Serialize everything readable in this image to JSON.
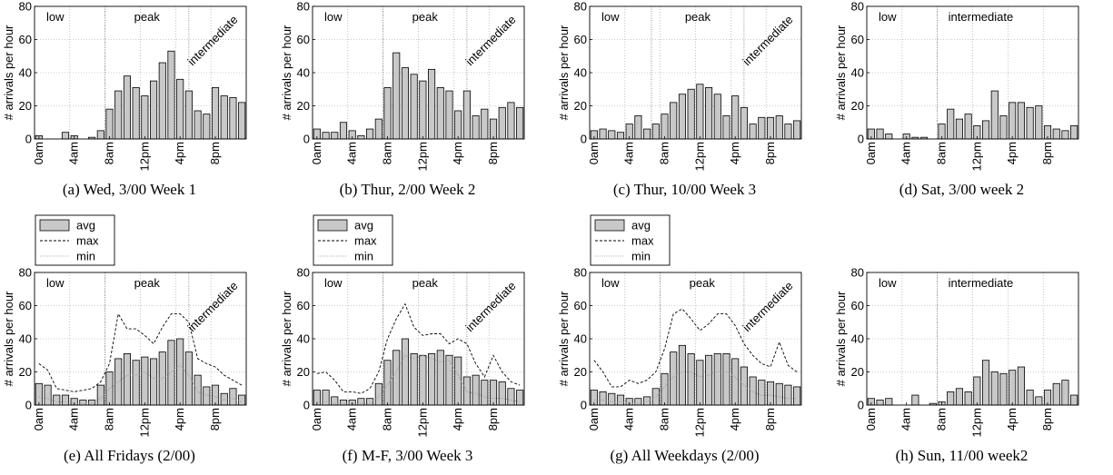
{
  "colors": {
    "bar_fill": "#c8c8c8",
    "bar_stroke": "#000000",
    "grid": "#9a9a9a",
    "max_line": "#000000",
    "min_line": "#8a8a8a",
    "divider": "#777777"
  },
  "chart_data": [
    {
      "type": "bar",
      "caption": "(a) Wed, 3/00 Week 1",
      "ylabel": "# arrivals per hour",
      "ylim": [
        0,
        80
      ],
      "yticks": [
        "0",
        "20",
        "40",
        "60",
        "80"
      ],
      "xticks": [
        {
          "hour": 0,
          "label": "0am"
        },
        {
          "hour": 4,
          "label": "4am"
        },
        {
          "hour": 8,
          "label": "8am"
        },
        {
          "hour": 12,
          "label": "12pm"
        },
        {
          "hour": 16,
          "label": "4pm"
        },
        {
          "hour": 20,
          "label": "8pm"
        }
      ],
      "grid": true,
      "regions": [
        {
          "label": "low",
          "from_hour": 0,
          "to_hour": 8,
          "style": "horizontal"
        },
        {
          "label": "peak",
          "from_hour": 8,
          "to_hour": 17.5,
          "style": "horizontal"
        },
        {
          "label": "intermediate",
          "from_hour": 17.5,
          "to_hour": 24,
          "style": "rotated"
        }
      ],
      "avg": [
        2,
        0,
        0,
        4,
        2,
        0,
        1,
        5,
        18,
        29,
        38,
        31,
        26,
        35,
        46,
        53,
        36,
        29,
        17,
        15,
        31,
        26,
        25,
        22
      ]
    },
    {
      "type": "bar",
      "caption": "(b) Thur, 2/00 Week 2",
      "ylabel": "# arrivals per hour",
      "ylim": [
        0,
        80
      ],
      "yticks": [
        "0",
        "20",
        "40",
        "60",
        "80"
      ],
      "xticks": [
        {
          "hour": 0,
          "label": "0am"
        },
        {
          "hour": 4,
          "label": "4am"
        },
        {
          "hour": 8,
          "label": "8am"
        },
        {
          "hour": 12,
          "label": "12pm"
        },
        {
          "hour": 16,
          "label": "4pm"
        },
        {
          "hour": 20,
          "label": "8pm"
        }
      ],
      "grid": true,
      "regions": [
        {
          "label": "low",
          "from_hour": 0,
          "to_hour": 8,
          "style": "horizontal"
        },
        {
          "label": "peak",
          "from_hour": 8,
          "to_hour": 17.5,
          "style": "horizontal"
        },
        {
          "label": "intermediate",
          "from_hour": 17.5,
          "to_hour": 24,
          "style": "rotated"
        }
      ],
      "avg": [
        6,
        4,
        4,
        10,
        5,
        2,
        6,
        12,
        31,
        52,
        43,
        39,
        35,
        42,
        31,
        29,
        17,
        29,
        14,
        18,
        12,
        19,
        22,
        19
      ]
    },
    {
      "type": "bar",
      "caption": "(c) Thur, 10/00 Week 3",
      "ylabel": "# arrivals per hour",
      "ylim": [
        0,
        80
      ],
      "yticks": [
        "0",
        "20",
        "40",
        "60",
        "80"
      ],
      "xticks": [
        {
          "hour": 0,
          "label": "0am"
        },
        {
          "hour": 4,
          "label": "4am"
        },
        {
          "hour": 8,
          "label": "8am"
        },
        {
          "hour": 12,
          "label": "12pm"
        },
        {
          "hour": 16,
          "label": "4pm"
        },
        {
          "hour": 20,
          "label": "8pm"
        }
      ],
      "grid": true,
      "regions": [
        {
          "label": "low",
          "from_hour": 0,
          "to_hour": 7,
          "style": "horizontal"
        },
        {
          "label": "peak",
          "from_hour": 7,
          "to_hour": 17.5,
          "style": "horizontal"
        },
        {
          "label": "intermediate",
          "from_hour": 17.5,
          "to_hour": 24,
          "style": "rotated"
        }
      ],
      "avg": [
        5,
        6,
        5,
        4,
        9,
        14,
        6,
        9,
        15,
        22,
        27,
        30,
        33,
        31,
        27,
        14,
        26,
        19,
        9,
        13,
        13,
        14,
        9,
        11
      ]
    },
    {
      "type": "bar",
      "caption": "(d) Sat, 3/00 week 2",
      "ylabel": "# arrivals per hour",
      "ylim": [
        0,
        80
      ],
      "yticks": [
        "0",
        "20",
        "40",
        "60",
        "80"
      ],
      "xticks": [
        {
          "hour": 0,
          "label": "0am"
        },
        {
          "hour": 4,
          "label": "4am"
        },
        {
          "hour": 8,
          "label": "8am"
        },
        {
          "hour": 12,
          "label": "12pm"
        },
        {
          "hour": 16,
          "label": "4pm"
        },
        {
          "hour": 20,
          "label": "8pm"
        }
      ],
      "grid": true,
      "regions": [
        {
          "label": "low",
          "from_hour": 0,
          "to_hour": 8,
          "style": "horizontal"
        },
        {
          "label": "intermediate",
          "from_hour": 8,
          "to_hour": 24,
          "style": "horizontal"
        }
      ],
      "avg": [
        6,
        6,
        3,
        0,
        3,
        1,
        1,
        0,
        9,
        18,
        12,
        15,
        8,
        11,
        29,
        14,
        22,
        22,
        19,
        20,
        8,
        6,
        5,
        8
      ]
    },
    {
      "type": "bar",
      "caption": "(e) All Fridays (2/00)",
      "ylabel": "# arrivals per hour",
      "ylim": [
        0,
        80
      ],
      "yticks": [
        "0",
        "20",
        "40",
        "60",
        "80"
      ],
      "xticks": [
        {
          "hour": 0,
          "label": "0am"
        },
        {
          "hour": 4,
          "label": "4am"
        },
        {
          "hour": 8,
          "label": "8am"
        },
        {
          "hour": 12,
          "label": "12pm"
        },
        {
          "hour": 16,
          "label": "4pm"
        },
        {
          "hour": 20,
          "label": "8pm"
        }
      ],
      "grid": true,
      "legend": {
        "position": "above-left",
        "items": [
          "avg",
          "max",
          "min"
        ]
      },
      "regions": [
        {
          "label": "low",
          "from_hour": 0,
          "to_hour": 8,
          "style": "horizontal"
        },
        {
          "label": "peak",
          "from_hour": 8,
          "to_hour": 17.5,
          "style": "horizontal"
        },
        {
          "label": "intermediate",
          "from_hour": 17.5,
          "to_hour": 24,
          "style": "rotated"
        }
      ],
      "avg": [
        13,
        12,
        6,
        6,
        4,
        3,
        3,
        12,
        20,
        28,
        31,
        27,
        29,
        28,
        32,
        39,
        40,
        32,
        18,
        11,
        12,
        7,
        10,
        6
      ],
      "max": [
        25,
        21,
        10,
        9,
        8,
        9,
        10,
        14,
        25,
        55,
        46,
        46,
        42,
        37,
        47,
        55,
        55,
        50,
        28,
        25,
        23,
        18,
        15,
        12
      ],
      "min": [
        5,
        4,
        2,
        2,
        1,
        1,
        1,
        4,
        10,
        14,
        18,
        18,
        20,
        16,
        16,
        20,
        24,
        18,
        8,
        6,
        5,
        3,
        4,
        2
      ]
    },
    {
      "type": "bar",
      "caption": "(f) M-F, 3/00 Week 3",
      "ylabel": "# arrivals per hour",
      "ylim": [
        0,
        80
      ],
      "yticks": [
        "0",
        "20",
        "40",
        "60",
        "80"
      ],
      "xticks": [
        {
          "hour": 0,
          "label": "0am"
        },
        {
          "hour": 4,
          "label": "4am"
        },
        {
          "hour": 8,
          "label": "8am"
        },
        {
          "hour": 12,
          "label": "12pm"
        },
        {
          "hour": 16,
          "label": "4pm"
        },
        {
          "hour": 20,
          "label": "8pm"
        }
      ],
      "grid": true,
      "legend": {
        "position": "above-left",
        "items": [
          "avg",
          "max",
          "min"
        ]
      },
      "regions": [
        {
          "label": "low",
          "from_hour": 0,
          "to_hour": 8,
          "style": "horizontal"
        },
        {
          "label": "peak",
          "from_hour": 8,
          "to_hour": 17.5,
          "style": "horizontal"
        },
        {
          "label": "intermediate",
          "from_hour": 17.5,
          "to_hour": 24,
          "style": "rotated"
        }
      ],
      "avg": [
        9,
        9,
        5,
        3,
        3,
        4,
        4,
        13,
        27,
        33,
        40,
        31,
        30,
        31,
        33,
        30,
        29,
        17,
        18,
        15,
        15,
        14,
        10,
        9
      ],
      "max": [
        19,
        20,
        15,
        8,
        8,
        7,
        10,
        20,
        40,
        52,
        61,
        47,
        42,
        43,
        43,
        37,
        40,
        37,
        25,
        17,
        30,
        20,
        14,
        12
      ],
      "min": [
        2,
        2,
        1,
        1,
        1,
        1,
        1,
        5,
        12,
        20,
        30,
        28,
        30,
        28,
        26,
        27,
        18,
        8,
        7,
        5,
        4,
        4,
        3,
        2
      ]
    },
    {
      "type": "bar",
      "caption": "(g) All Weekdays (2/00)",
      "ylabel": "# arrivals per hour",
      "ylim": [
        0,
        80
      ],
      "yticks": [
        "0",
        "20",
        "40",
        "60",
        "80"
      ],
      "xticks": [
        {
          "hour": 0,
          "label": "0am"
        },
        {
          "hour": 4,
          "label": "4am"
        },
        {
          "hour": 8,
          "label": "8am"
        },
        {
          "hour": 12,
          "label": "12pm"
        },
        {
          "hour": 16,
          "label": "4pm"
        },
        {
          "hour": 20,
          "label": "8pm"
        }
      ],
      "grid": true,
      "legend": {
        "position": "above-left",
        "items": [
          "avg",
          "max",
          "min"
        ]
      },
      "regions": [
        {
          "label": "low",
          "from_hour": 0,
          "to_hour": 8,
          "style": "horizontal"
        },
        {
          "label": "peak",
          "from_hour": 8,
          "to_hour": 17.5,
          "style": "horizontal"
        },
        {
          "label": "intermediate",
          "from_hour": 17.5,
          "to_hour": 24,
          "style": "rotated"
        }
      ],
      "avg": [
        9,
        8,
        7,
        6,
        4,
        4,
        5,
        10,
        19,
        32,
        36,
        31,
        27,
        30,
        31,
        31,
        28,
        23,
        17,
        15,
        14,
        13,
        12,
        11
      ],
      "max": [
        27,
        20,
        11,
        11,
        15,
        13,
        15,
        20,
        34,
        55,
        58,
        52,
        45,
        49,
        55,
        55,
        48,
        37,
        30,
        25,
        23,
        38,
        24,
        20
      ],
      "min": [
        3,
        3,
        2,
        2,
        1,
        1,
        2,
        5,
        11,
        17,
        20,
        20,
        17,
        18,
        20,
        20,
        17,
        12,
        8,
        6,
        6,
        5,
        4,
        4
      ]
    },
    {
      "type": "bar",
      "caption": "(h) Sun, 11/00 week2",
      "ylabel": "# arrivals per hour",
      "ylim": [
        0,
        80
      ],
      "yticks": [
        "0",
        "20",
        "40",
        "60",
        "80"
      ],
      "xticks": [
        {
          "hour": 0,
          "label": "0am"
        },
        {
          "hour": 4,
          "label": "4am"
        },
        {
          "hour": 8,
          "label": "8am"
        },
        {
          "hour": 12,
          "label": "12pm"
        },
        {
          "hour": 16,
          "label": "4pm"
        },
        {
          "hour": 20,
          "label": "8pm"
        }
      ],
      "grid": true,
      "regions": [
        {
          "label": "low",
          "from_hour": 0,
          "to_hour": 8,
          "style": "horizontal"
        },
        {
          "label": "intermediate",
          "from_hour": 8,
          "to_hour": 24,
          "style": "horizontal"
        }
      ],
      "avg": [
        4,
        3,
        4,
        0,
        0,
        6,
        0,
        1,
        2,
        8,
        10,
        8,
        17,
        27,
        20,
        19,
        21,
        23,
        9,
        5,
        9,
        13,
        15,
        6
      ]
    }
  ]
}
